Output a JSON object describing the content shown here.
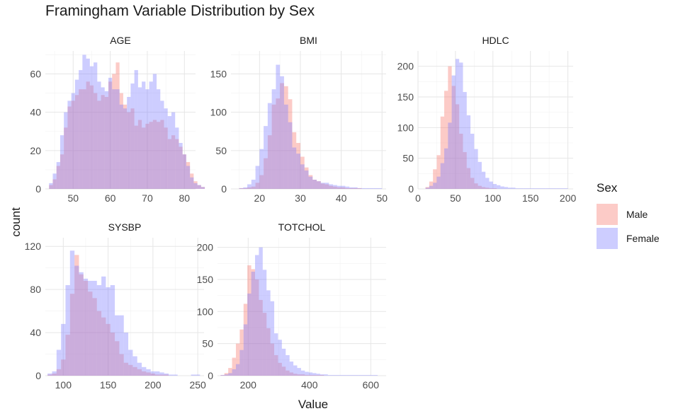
{
  "title": "Framingham Variable Distribution by Sex",
  "xlabel": "Value",
  "ylabel": "count",
  "legend": {
    "title": "Sex",
    "items": [
      {
        "label": "Male",
        "color": "#F8766D"
      },
      {
        "label": "Female",
        "color": "#7B7BFF"
      }
    ]
  },
  "chart_data": [
    {
      "type": "bar",
      "title": "AGE",
      "xlim": [
        42.5,
        83
      ],
      "ylim": [
        0,
        72
      ],
      "xticks": [
        50,
        60,
        70,
        80
      ],
      "yticks": [
        0,
        20,
        40,
        60
      ],
      "bin_start": 43.5,
      "bin_width": 1,
      "series": [
        {
          "name": "Male",
          "values": [
            2,
            5,
            12,
            18,
            32,
            43,
            46,
            49,
            52,
            52,
            56,
            54,
            50,
            46,
            49,
            48,
            56,
            60,
            66,
            50,
            44,
            40,
            42,
            33,
            36,
            32,
            34,
            35,
            36,
            35,
            36,
            32,
            26,
            28,
            26,
            22,
            18,
            14,
            8,
            4,
            2,
            1
          ]
        },
        {
          "name": "Female",
          "values": [
            3,
            8,
            14,
            28,
            40,
            46,
            50,
            57,
            62,
            70,
            68,
            64,
            66,
            56,
            53,
            51,
            58,
            52,
            52,
            44,
            42,
            48,
            55,
            62,
            53,
            56,
            52,
            56,
            60,
            52,
            46,
            42,
            38,
            40,
            32,
            24,
            18,
            12,
            6,
            3,
            2,
            1
          ]
        }
      ]
    },
    {
      "type": "bar",
      "title": "BMI",
      "xlim": [
        13,
        51
      ],
      "ylim": [
        0,
        180
      ],
      "xticks": [
        20,
        30,
        40,
        50
      ],
      "yticks": [
        0,
        50,
        100,
        150
      ],
      "bin_start": 15,
      "bin_width": 1,
      "series": [
        {
          "name": "Male",
          "values": [
            1,
            1,
            2,
            3,
            8,
            18,
            40,
            70,
            110,
            118,
            138,
            134,
            117,
            74,
            60,
            42,
            28,
            18,
            12,
            10,
            7,
            6,
            4,
            3,
            2,
            2,
            1,
            1,
            1,
            1,
            0,
            0,
            0,
            0,
            0
          ]
        },
        {
          "name": "Female",
          "values": [
            1,
            2,
            6,
            12,
            30,
            52,
            82,
            112,
            130,
            162,
            147,
            110,
            87,
            54,
            46,
            32,
            24,
            16,
            12,
            10,
            8,
            8,
            6,
            5,
            4,
            4,
            3,
            2,
            2,
            1,
            1,
            1,
            1,
            1,
            1
          ]
        }
      ]
    },
    {
      "type": "bar",
      "title": "HDLC",
      "xlim": [
        0,
        207
      ],
      "ylim": [
        0,
        225
      ],
      "xticks": [
        0,
        50,
        100,
        150,
        200
      ],
      "yticks": [
        0,
        50,
        100,
        150,
        200
      ],
      "bin_start": 10,
      "bin_width": 5,
      "series": [
        {
          "name": "Male",
          "values": [
            3,
            12,
            32,
            55,
            118,
            160,
            200,
            168,
            138,
            90,
            60,
            34,
            18,
            9,
            5,
            3,
            2,
            1,
            1,
            0,
            0,
            0,
            0,
            0,
            0,
            0,
            0,
            0,
            0,
            0,
            0,
            0,
            0,
            0,
            0,
            0,
            0,
            0
          ]
        },
        {
          "name": "Female",
          "values": [
            2,
            5,
            10,
            20,
            42,
            66,
            108,
            185,
            212,
            206,
            158,
            120,
            90,
            65,
            44,
            28,
            18,
            12,
            8,
            6,
            4,
            3,
            2,
            2,
            1,
            1,
            1,
            1,
            1,
            1,
            1,
            1,
            1,
            1,
            1,
            1,
            1,
            1
          ]
        }
      ]
    },
    {
      "type": "bar",
      "title": "SYSBP",
      "xlim": [
        80,
        257
      ],
      "ylim": [
        0,
        128
      ],
      "xticks": [
        100,
        150,
        200,
        250
      ],
      "yticks": [
        0,
        40,
        80,
        120
      ],
      "bin_start": 82.5,
      "bin_width": 5,
      "series": [
        {
          "name": "Male",
          "values": [
            1,
            2,
            6,
            15,
            38,
            76,
            112,
            94,
            88,
            78,
            72,
            60,
            54,
            48,
            40,
            32,
            20,
            12,
            10,
            8,
            6,
            4,
            3,
            2,
            1,
            1,
            1,
            0,
            0,
            0,
            0,
            0,
            0,
            0
          ]
        },
        {
          "name": "Female",
          "values": [
            2,
            4,
            24,
            48,
            84,
            116,
            102,
            96,
            90,
            88,
            88,
            84,
            92,
            82,
            84,
            56,
            56,
            40,
            24,
            18,
            12,
            8,
            6,
            4,
            4,
            3,
            2,
            1,
            1,
            0,
            0,
            0,
            1,
            1
          ]
        }
      ]
    },
    {
      "type": "bar",
      "title": "TOTCHOL",
      "xlim": [
        100,
        650
      ],
      "ylim": [
        0,
        215
      ],
      "xticks": [
        200,
        400,
        600
      ],
      "yticks": [
        0,
        50,
        100,
        150,
        200
      ],
      "bin_start": 110,
      "bin_width": 12.5,
      "series": [
        {
          "name": "Male",
          "values": [
            1,
            4,
            12,
            28,
            50,
            72,
            112,
            172,
            166,
            150,
            118,
            98,
            74,
            50,
            32,
            20,
            14,
            8,
            5,
            3,
            2,
            2,
            1,
            1,
            1,
            1,
            1,
            0,
            0,
            0,
            0,
            0,
            0,
            0,
            0,
            0,
            0,
            0,
            0,
            0,
            0
          ]
        },
        {
          "name": "Female",
          "values": [
            1,
            2,
            4,
            10,
            18,
            40,
            80,
            128,
            162,
            188,
            200,
            165,
            133,
            116,
            66,
            56,
            42,
            32,
            22,
            16,
            12,
            8,
            6,
            5,
            4,
            3,
            2,
            2,
            1,
            1,
            1,
            1,
            1,
            1,
            1,
            1,
            1,
            1,
            1,
            1,
            1
          ]
        }
      ]
    }
  ]
}
